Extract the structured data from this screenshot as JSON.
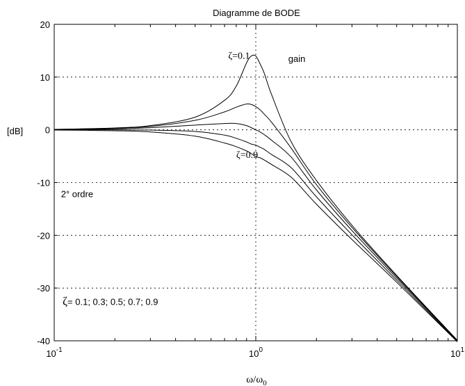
{
  "chart_data": {
    "type": "line",
    "title": "Diagramme de BODE",
    "xlabel": "ω/ω",
    "xlabel_sub": "0",
    "ylabel": "[dB]",
    "x_scale": "log",
    "xlim": [
      0.1,
      10
    ],
    "ylim": [
      -40,
      20
    ],
    "grid": true,
    "x_ticks": [
      {
        "value": 0.1,
        "base": "10",
        "exp": "-1"
      },
      {
        "value": 1,
        "base": "10",
        "exp": "0"
      },
      {
        "value": 10,
        "base": "10",
        "exp": "1"
      }
    ],
    "y_ticks": [
      -40,
      -30,
      -20,
      -10,
      0,
      10,
      20
    ],
    "series": [
      {
        "zeta": 0.1,
        "x": [
          0.1,
          0.2,
          0.3,
          0.5,
          0.7,
          0.8,
          0.9,
          0.95,
          1.0,
          1.05,
          1.1,
          1.2,
          1.5,
          2,
          3,
          5,
          10
        ],
        "values": [
          0.09,
          0.36,
          0.8,
          2.4,
          5.6,
          8.3,
          12.7,
          14.0,
          14.0,
          12.5,
          10.8,
          6.6,
          -2.3,
          -9.6,
          -18.1,
          -27.6,
          -39.9
        ]
      },
      {
        "zeta": 0.3,
        "x": [
          0.1,
          0.2,
          0.3,
          0.5,
          0.7,
          0.8,
          0.9,
          0.95,
          1.0,
          1.05,
          1.1,
          1.2,
          1.5,
          2,
          3,
          5,
          10
        ],
        "values": [
          0.07,
          0.3,
          0.65,
          1.8,
          3.4,
          4.3,
          4.9,
          4.8,
          4.4,
          3.8,
          3.0,
          1.4,
          -3.5,
          -10.4,
          -18.5,
          -27.8,
          -40.0
        ]
      },
      {
        "zeta": 0.5,
        "x": [
          0.1,
          0.2,
          0.3,
          0.5,
          0.7,
          0.8,
          0.9,
          0.95,
          1.0,
          1.05,
          1.1,
          1.2,
          1.5,
          2,
          3,
          5,
          10
        ],
        "values": [
          0.04,
          0.18,
          0.4,
          0.9,
          1.2,
          1.2,
          0.8,
          0.4,
          0.0,
          -0.4,
          -0.9,
          -2.0,
          -5.2,
          -11.4,
          -19.1,
          -28.1,
          -40.0
        ]
      },
      {
        "zeta": 0.7,
        "x": [
          0.1,
          0.2,
          0.3,
          0.5,
          0.7,
          0.8,
          0.9,
          0.95,
          1.0,
          1.05,
          1.1,
          1.2,
          1.5,
          2,
          3,
          5,
          10
        ],
        "values": [
          0.0,
          0.0,
          -0.05,
          -0.3,
          -1.0,
          -1.6,
          -2.3,
          -2.7,
          -2.9,
          -3.3,
          -3.7,
          -4.7,
          -7.2,
          -12.7,
          -19.9,
          -28.5,
          -40.1
        ]
      },
      {
        "zeta": 0.9,
        "x": [
          0.1,
          0.2,
          0.3,
          0.5,
          0.7,
          0.8,
          0.9,
          0.95,
          1.0,
          1.05,
          1.1,
          1.2,
          1.5,
          2,
          3,
          5,
          10
        ],
        "values": [
          -0.04,
          -0.17,
          -0.4,
          -1.2,
          -2.5,
          -3.2,
          -4.0,
          -4.5,
          -5.1,
          -5.3,
          -5.7,
          -6.6,
          -9.0,
          -14.1,
          -20.8,
          -28.9,
          -40.2
        ]
      }
    ],
    "annotations": {
      "zeta_top": {
        "label": "ζ=0.1",
        "at": [
          0.73,
          13.5
        ]
      },
      "gain": {
        "label": "gain",
        "at": [
          1.45,
          12.9
        ]
      },
      "zeta_bottom": {
        "label": "ζ=0.9",
        "at": [
          0.8,
          -5.3
        ]
      },
      "order": {
        "label": "2° ordre",
        "at": [
          0.108,
          -12.8
        ]
      },
      "zeta_list_symbol": "ζ",
      "zeta_list": "= 0.1; 0.3; 0.5; 0.7; 0.9",
      "zeta_list_at": [
        0.11,
        -33.2
      ]
    }
  }
}
